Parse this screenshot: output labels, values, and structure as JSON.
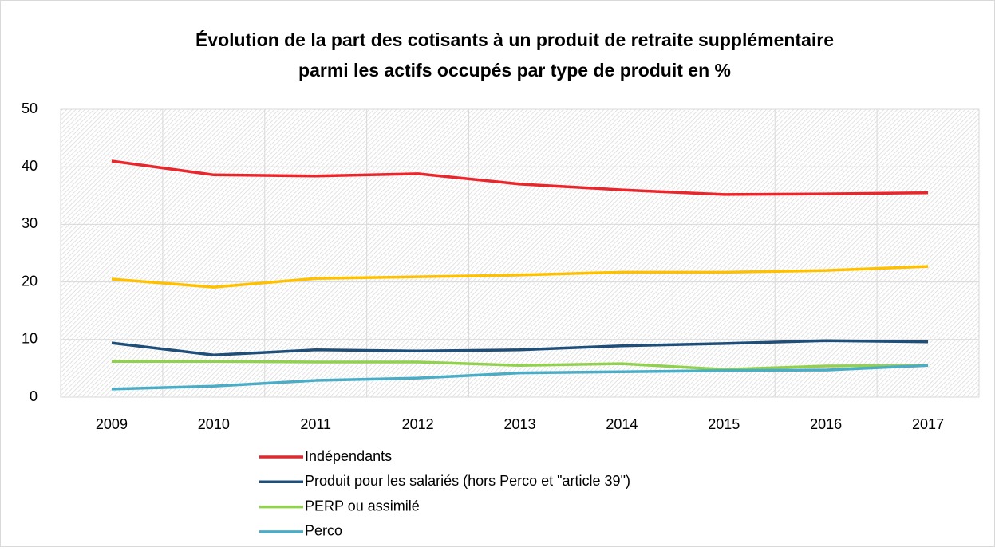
{
  "chart_data": {
    "type": "line",
    "title": [
      "Évolution de la part des cotisants à un produit de retraite supplémentaire",
      "parmi les actifs occupés par type de produit en %"
    ],
    "categories": [
      "2009",
      "2010",
      "2011",
      "2012",
      "2013",
      "2014",
      "2015",
      "2016",
      "2017"
    ],
    "series": [
      {
        "name": "Indépendants",
        "color": "#e8262b",
        "values": [
          41.0,
          38.6,
          38.4,
          38.8,
          37.0,
          36.0,
          35.2,
          35.3,
          35.5
        ]
      },
      {
        "name": null,
        "color": "#ffc000",
        "values": [
          20.5,
          19.1,
          20.6,
          20.9,
          21.2,
          21.7,
          21.7,
          22.0,
          22.7
        ]
      },
      {
        "name": "Produit pour les salariés (hors Perco et \"article 39\")",
        "color": "#1f4e79",
        "values": [
          9.4,
          7.3,
          8.2,
          8.0,
          8.2,
          8.9,
          9.3,
          9.8,
          9.6
        ]
      },
      {
        "name": "PERP ou assimilé",
        "color": "#92d050",
        "values": [
          6.2,
          6.2,
          6.1,
          6.1,
          5.5,
          5.8,
          4.8,
          5.4,
          5.5
        ]
      },
      {
        "name": "Perco",
        "color": "#4bacc6",
        "values": [
          1.4,
          1.9,
          2.9,
          3.3,
          4.2,
          4.4,
          4.6,
          4.7,
          5.5
        ]
      }
    ],
    "ylim": [
      0,
      50
    ],
    "yticks": [
      0,
      10,
      20,
      30,
      40,
      50
    ],
    "grid": true,
    "legend": "bottom"
  }
}
